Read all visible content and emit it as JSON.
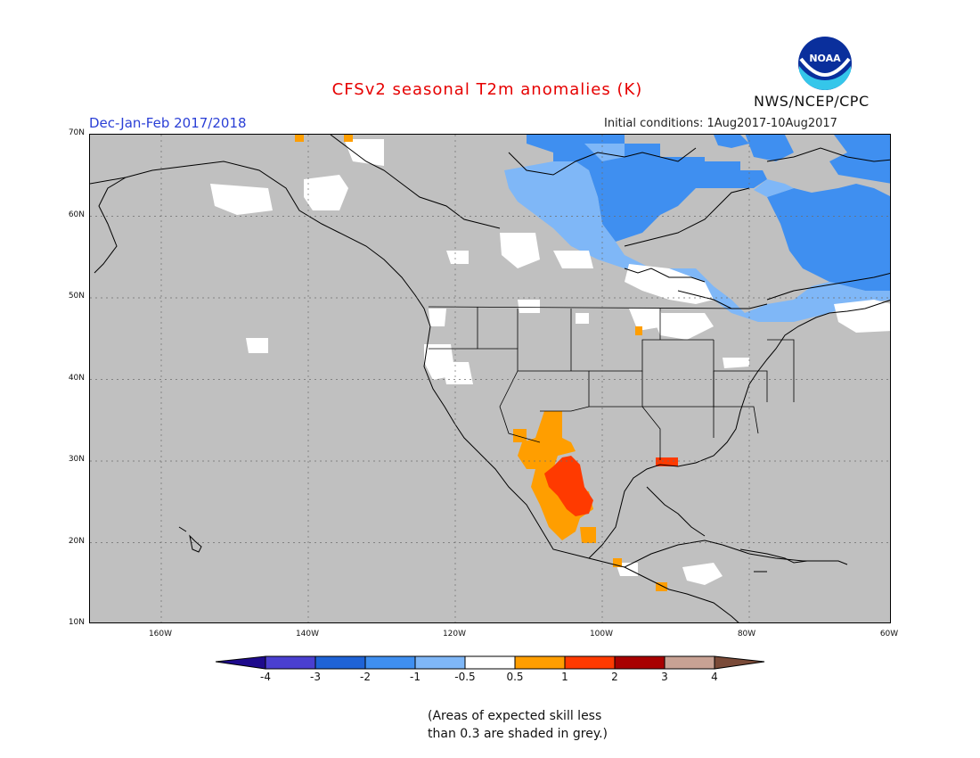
{
  "title": "CFSv2 seasonal T2m anomalies (K)",
  "season": "Dec-Jan-Feb 2017/2018",
  "initial_conditions": "Initial conditions: 1Aug2017-10Aug2017",
  "credit": "NWS/NCEP/CPC",
  "logo_text": "NOAA",
  "lat_labels": [
    "70N",
    "60N",
    "50N",
    "40N",
    "30N",
    "20N",
    "10N"
  ],
  "lon_labels": [
    "160W",
    "140W",
    "120W",
    "100W",
    "80W",
    "60W"
  ],
  "colorbar": {
    "colors": [
      "#1e0a8c",
      "#4a3fd0",
      "#1f63d6",
      "#3f8ff0",
      "#7fb7f7",
      "#ffffff",
      "#ff9e00",
      "#ff3a00",
      "#a80000",
      "#c8a294",
      "#7a4a38"
    ],
    "labels": [
      "-4",
      "-3",
      "-2",
      "-1",
      "-0.5",
      "0.5",
      "1",
      "2",
      "3",
      "4"
    ],
    "grey_color": "#c0c0c0"
  },
  "footnote_line1": "(Areas of expected skill less",
  "footnote_line2": "than 0.3 are shaded in grey.)",
  "map": {
    "extent_lon": [
      -172.5,
      -60
    ],
    "extent_lat": [
      10,
      70
    ],
    "regions": [
      {
        "anomaly": "-2 to -1",
        "area": "Northern Quebec / Hudson Bay / Nunavut"
      },
      {
        "anomaly": "-1 to -0.5",
        "area": "Central and eastern Canada"
      },
      {
        "anomaly": "-0.5 to 0.5",
        "area": "Northwestern Canada, Great Lakes, Pacific Northwest, Alaska patches"
      },
      {
        "anomaly": "0.5 to 1",
        "area": "Southwestern US and northern Mexico"
      },
      {
        "anomaly": "1 to 2",
        "area": "Central Mexico and Louisiana coast"
      }
    ]
  }
}
